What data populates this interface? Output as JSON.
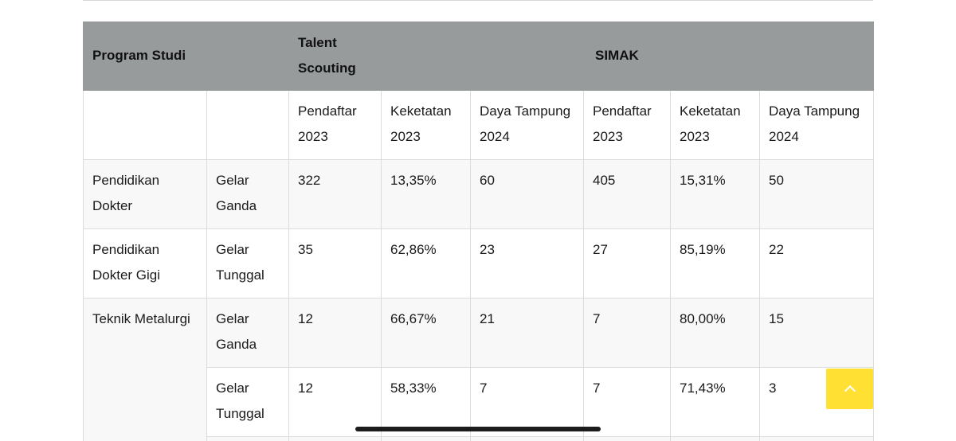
{
  "table": {
    "header": {
      "program_studi": "Program Studi",
      "talent_scouting": "Talent Scouting",
      "simak": "SIMAK"
    },
    "subheader": {
      "ts_pendaftar": "Pendaftar 2023",
      "ts_keketatan": "Keketatan 2023",
      "ts_daya_tampung": "Daya Tampung 2024",
      "simak_pendaftar": "Pendaftar 2023",
      "simak_keketatan": "Keketatan 2023",
      "simak_daya_tampung": "Daya Tampung 2024"
    },
    "rows": [
      {
        "program": "Pendidikan Dokter",
        "gelar": "Gelar Ganda",
        "ts_pendaftar": "322",
        "ts_keketatan": "13,35%",
        "ts_daya_tampung": "60",
        "simak_pendaftar": "405",
        "simak_keketatan": "15,31%",
        "simak_daya_tampung": "50"
      },
      {
        "program": "Pendidikan Dokter Gigi",
        "gelar": "Gelar Tunggal",
        "ts_pendaftar": "35",
        "ts_keketatan": "62,86%",
        "ts_daya_tampung": "23",
        "simak_pendaftar": "27",
        "simak_keketatan": "85,19%",
        "simak_daya_tampung": "22"
      },
      {
        "program": "Teknik Metalurgi",
        "gelar": "Gelar Ganda",
        "ts_pendaftar": "12",
        "ts_keketatan": "66,67%",
        "ts_daya_tampung": "21",
        "simak_pendaftar": "7",
        "simak_keketatan": "80,00%",
        "simak_daya_tampung": "15"
      },
      {
        "program": "",
        "gelar": "Gelar Tunggal",
        "ts_pendaftar": "12",
        "ts_keketatan": "58,33%",
        "ts_daya_tampung": "7",
        "simak_pendaftar": "7",
        "simak_keketatan": "71,43%",
        "simak_daya_tampung": "3"
      }
    ]
  },
  "ui": {
    "scroll_top_icon": "chevron-up-icon",
    "accent_color": "#ffe033",
    "header_bg": "#989b9c"
  }
}
